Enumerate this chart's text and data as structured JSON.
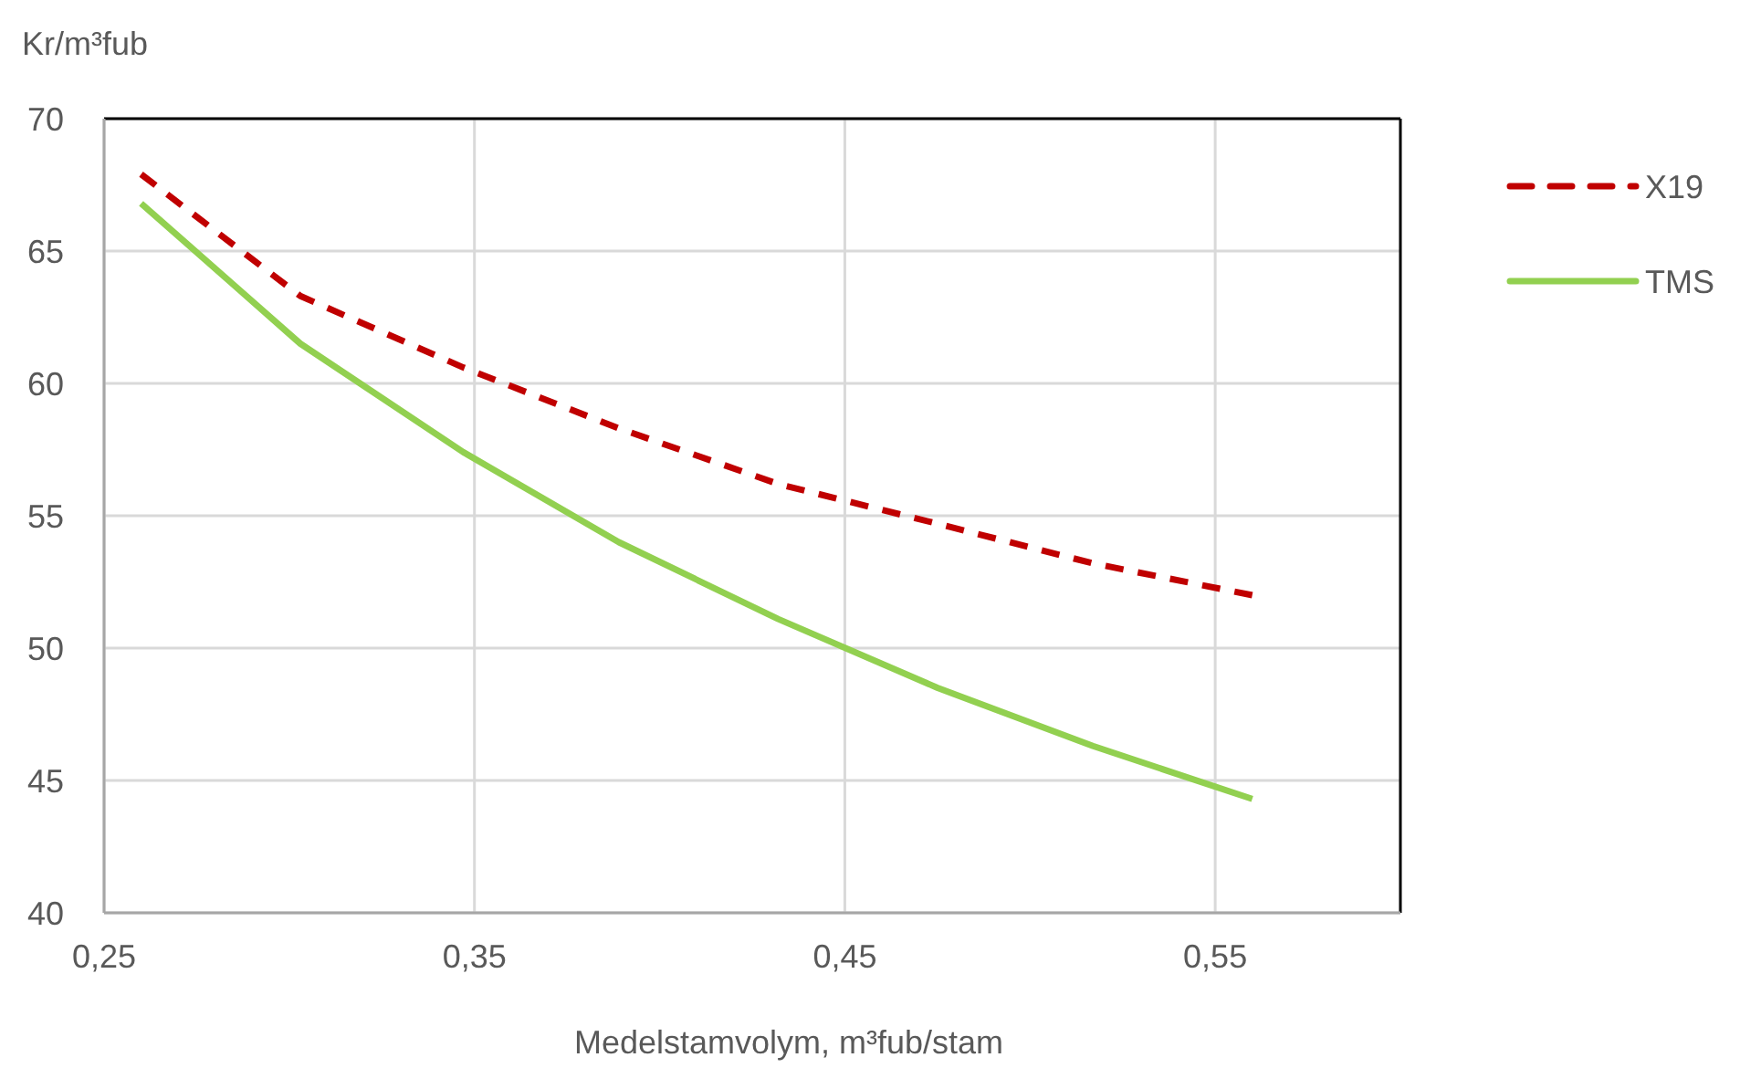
{
  "chart_data": {
    "type": "line",
    "xlabel": "Medelstamvolym, m³fub/stam",
    "ylabel": "Kr/m³fub",
    "x": [
      0.26,
      0.303,
      0.347,
      0.389,
      0.432,
      0.475,
      0.517,
      0.56
    ],
    "series": [
      {
        "name": "X19",
        "color": "#c00000",
        "line_style": "dashed",
        "values": [
          67.9,
          63.3,
          60.6,
          58.3,
          56.2,
          54.7,
          53.2,
          52.0
        ]
      },
      {
        "name": "TMS",
        "color": "#92d050",
        "line_style": "solid",
        "values": [
          66.8,
          61.5,
          57.4,
          54.0,
          51.1,
          48.5,
          46.3,
          44.3
        ]
      }
    ],
    "xlim": [
      0.25,
      0.6
    ],
    "xticks": [
      {
        "value": 0.25,
        "label": "0,25"
      },
      {
        "value": 0.35,
        "label": "0,35"
      },
      {
        "value": 0.45,
        "label": "0,45"
      },
      {
        "value": 0.55,
        "label": "0,55"
      }
    ],
    "ylim": [
      40,
      70
    ],
    "yticks": [
      40,
      45,
      50,
      55,
      60,
      65,
      70
    ],
    "grid": true,
    "legend": "right",
    "marker": "none"
  }
}
